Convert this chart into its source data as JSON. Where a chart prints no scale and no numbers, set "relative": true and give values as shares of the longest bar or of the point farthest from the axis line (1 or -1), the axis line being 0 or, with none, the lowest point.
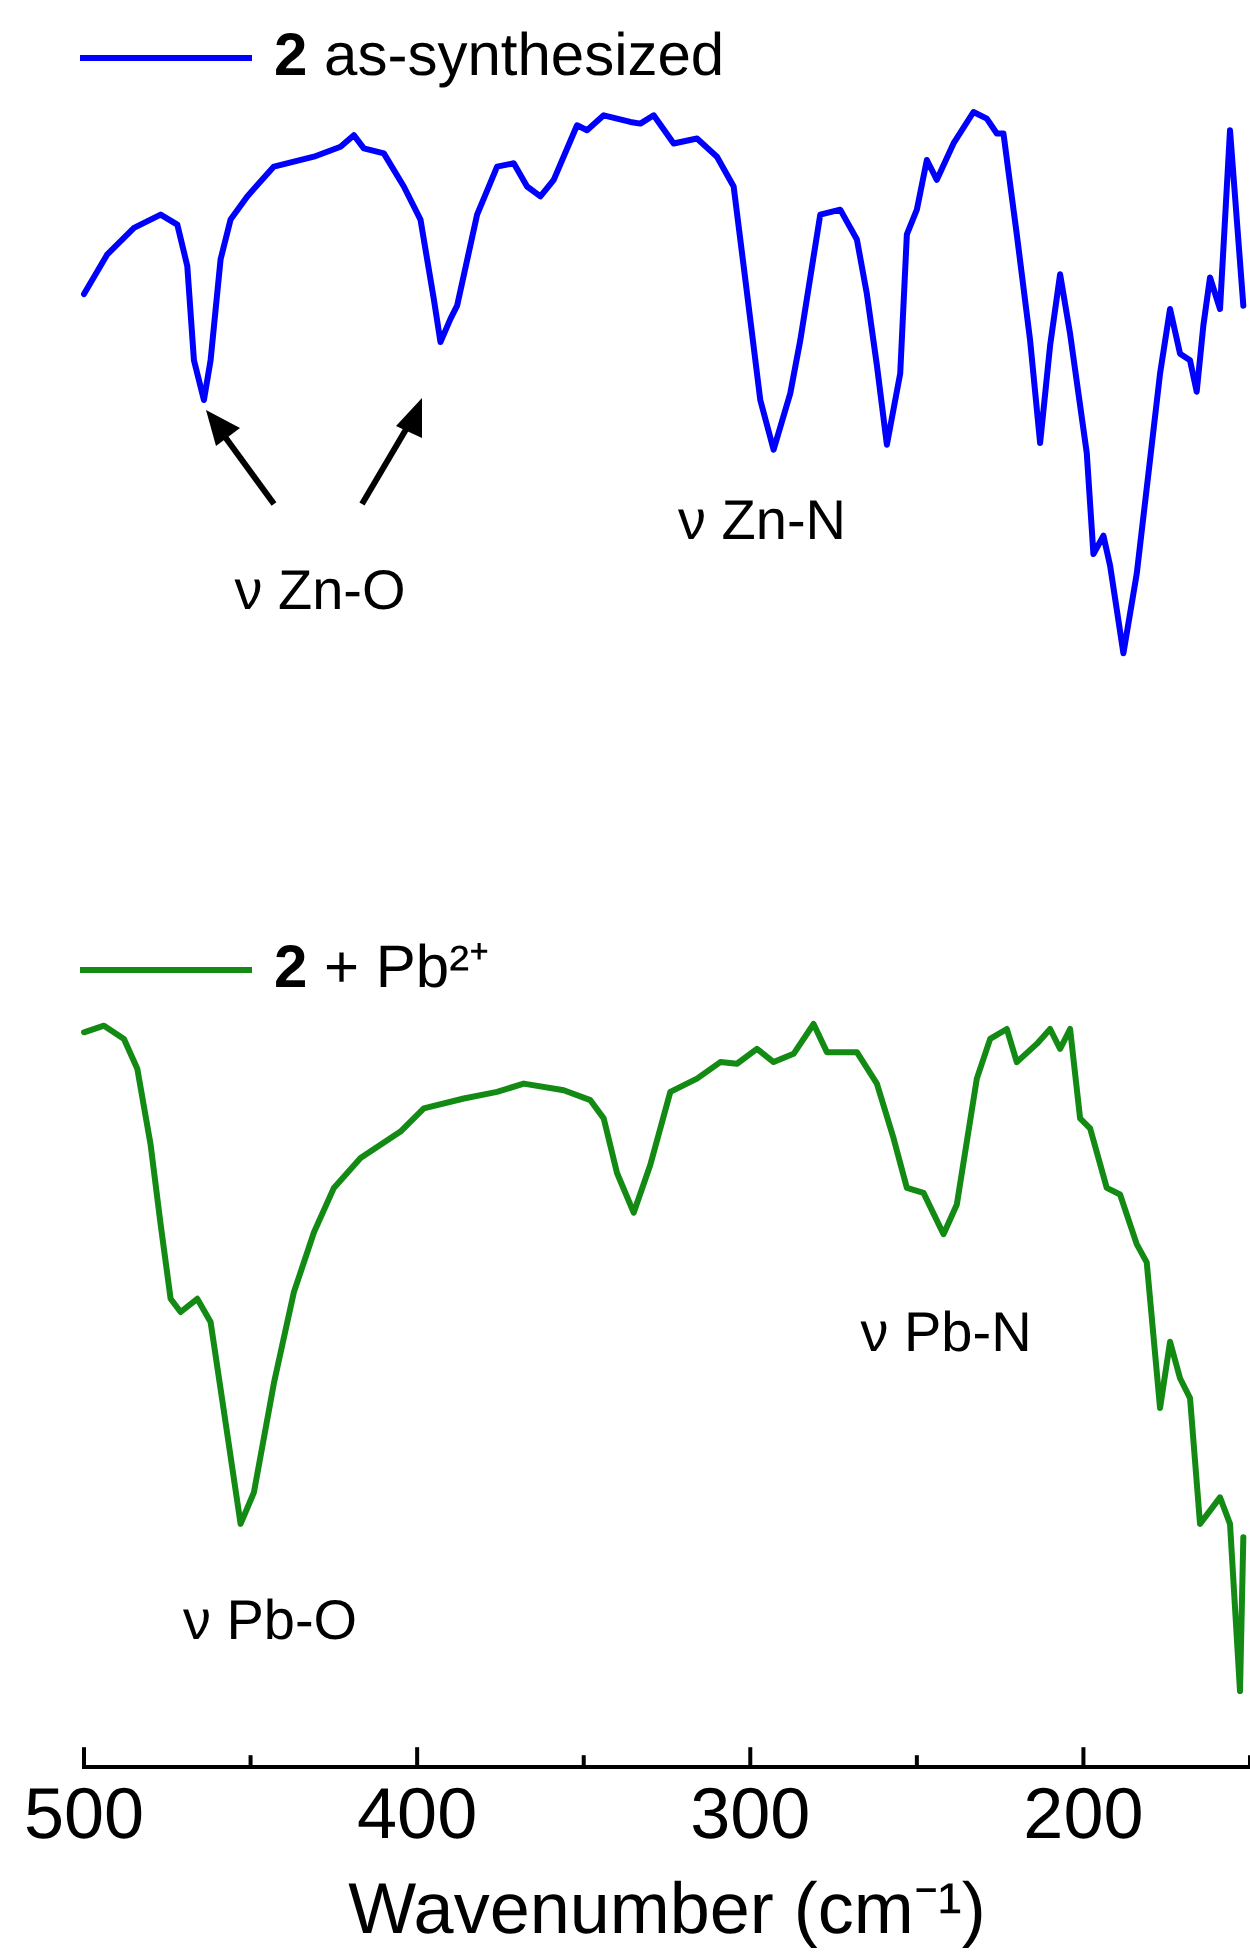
{
  "chart_data": {
    "type": "line",
    "relative": true,
    "xlabel": "Wavenumber (cm⁻¹)",
    "xlim": [
      500,
      150
    ],
    "xticks": [
      500,
      {
        "value": 450,
        "label": null
      },
      400,
      {
        "value": 350,
        "label": null
      },
      300,
      {
        "value": 250,
        "label": null
      },
      200,
      {
        "value": 150,
        "label": null
      }
    ],
    "legend": "top left",
    "marker": "none",
    "line_style": "solid",
    "series": [
      {
        "name": "2 as-synthesized",
        "color": "#0000ff",
        "x": [
          500,
          493,
          485,
          477,
          472,
          469,
          467,
          464,
          462,
          459,
          456,
          451,
          443,
          431,
          423,
          419,
          416,
          410,
          404,
          399,
          395,
          393,
          390,
          388,
          382,
          376,
          371,
          367,
          363,
          359,
          352,
          349,
          344,
          336,
          333,
          329,
          323,
          316,
          310,
          305,
          302,
          297,
          293,
          288,
          285,
          279,
          273,
          268,
          265,
          262,
          259,
          255,
          253,
          250,
          247,
          244,
          239,
          233,
          229,
          226,
          224,
          220,
          216,
          213,
          210,
          207,
          204,
          199,
          197,
          194,
          192,
          188,
          184,
          180,
          177,
          174,
          171,
          168,
          166,
          164,
          162,
          159,
          156,
          152
        ],
        "values": [
          0.89,
          0.914,
          0.93,
          0.938,
          0.932,
          0.907,
          0.85,
          0.826,
          0.85,
          0.911,
          0.935,
          0.949,
          0.967,
          0.973,
          0.979,
          0.986,
          0.978,
          0.975,
          0.955,
          0.935,
          0.887,
          0.861,
          0.875,
          0.883,
          0.938,
          0.967,
          0.969,
          0.955,
          0.949,
          0.959,
          0.992,
          0.989,
          0.998,
          0.994,
          0.993,
          0.998,
          0.981,
          0.984,
          0.973,
          0.955,
          0.907,
          0.826,
          0.796,
          0.83,
          0.862,
          0.938,
          0.941,
          0.923,
          0.89,
          0.847,
          0.799,
          0.842,
          0.926,
          0.941,
          0.971,
          0.959,
          0.981,
          1,
          0.996,
          0.987,
          0.987,
          0.926,
          0.862,
          0.8,
          0.859,
          0.902,
          0.866,
          0.794,
          0.733,
          0.744,
          0.726,
          0.673,
          0.721,
          0.79,
          0.842,
          0.881,
          0.854,
          0.85,
          0.831,
          0.871,
          0.9,
          0.881,
          0.989,
          0.883
        ]
      },
      {
        "name": "2 + Pb²⁺",
        "color": "#138a13",
        "x": [
          500,
          494,
          488,
          484,
          480,
          477,
          474,
          471,
          466,
          462,
          458,
          453,
          449,
          443,
          437,
          431,
          425,
          417,
          405,
          398,
          386,
          376,
          368,
          356,
          348,
          344,
          340,
          335,
          330,
          324,
          316,
          309,
          304,
          298,
          293,
          287,
          281,
          277,
          268,
          262,
          257,
          253,
          248,
          242,
          238,
          232,
          228,
          223,
          220,
          214,
          210,
          207,
          204,
          201,
          198,
          193,
          189,
          184,
          181,
          177,
          174,
          171,
          168,
          165,
          159,
          156,
          153,
          152
        ],
        "values": [
          0.444,
          0.448,
          0.44,
          0.422,
          0.376,
          0.328,
          0.283,
          0.275,
          0.283,
          0.269,
          0.215,
          0.147,
          0.166,
          0.232,
          0.287,
          0.323,
          0.35,
          0.368,
          0.384,
          0.398,
          0.404,
          0.408,
          0.413,
          0.409,
          0.403,
          0.392,
          0.359,
          0.335,
          0.364,
          0.408,
          0.416,
          0.426,
          0.425,
          0.434,
          0.426,
          0.431,
          0.449,
          0.432,
          0.432,
          0.413,
          0.38,
          0.35,
          0.347,
          0.322,
          0.34,
          0.416,
          0.44,
          0.446,
          0.426,
          0.437,
          0.446,
          0.434,
          0.446,
          0.392,
          0.386,
          0.35,
          0.346,
          0.316,
          0.305,
          0.217,
          0.257,
          0.235,
          0.223,
          0.147,
          0.163,
          0.147,
          0.046,
          0.139
        ]
      }
    ],
    "annotations": [
      "ν Zn-O",
      "ν Zn-N",
      "ν Pb-O",
      "ν Pb-N"
    ]
  }
}
